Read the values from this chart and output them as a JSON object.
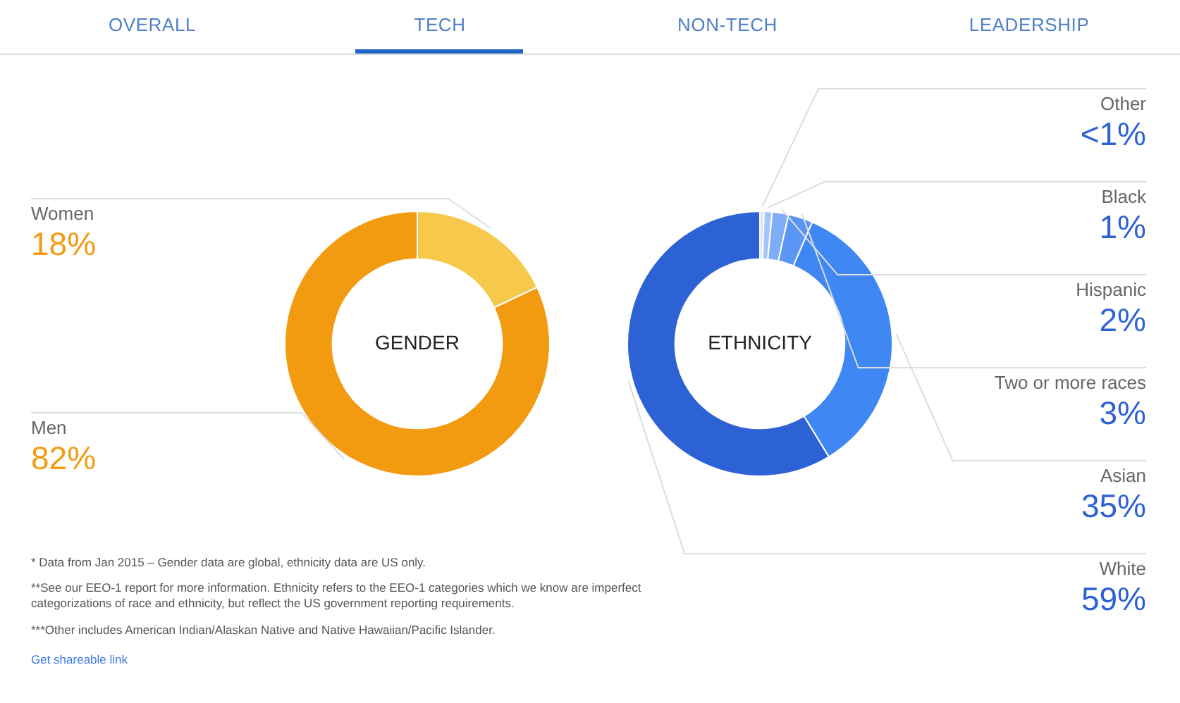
{
  "chart_data": [
    {
      "type": "other",
      "annotations": [
        "OVERALL",
        "TECH",
        "NON-TECH",
        "LEADERSHIP"
      ]
    },
    {
      "type": "donut",
      "title": "GENDER",
      "categories": [
        "Women",
        "Men"
      ],
      "values": [
        18,
        82
      ],
      "value_labels": [
        "18%",
        "82%"
      ],
      "colors": [
        "#f6c94c",
        "#f29a10"
      ]
    },
    {
      "type": "donut",
      "title": "ETHNICITY",
      "categories": [
        "Other",
        "Black",
        "Hispanic",
        "Two or more races",
        "Asian",
        "White"
      ],
      "values": [
        0.5,
        1,
        2,
        3,
        35,
        59
      ],
      "value_labels": [
        "<1%",
        "1%",
        "2%",
        "3%",
        "35%",
        "59%"
      ],
      "colors": [
        "#d5e3fb",
        "#a8c5f8",
        "#7eacf6",
        "#5a96f4",
        "#3f87f2",
        "#2d62d5"
      ]
    },
    {
      "type": "other",
      "annotations": [
        "* Data from Jan 2015 – Gender data are global, ethnicity data are US only.",
        "**See our EEO-1 report for more information. Ethnicity refers to the EEO-1 categories which we know are imperfect categorizations of race and ethnicity, but reflect the US government reporting requirements.",
        "***Other includes American Indian/Alaskan Native and Native Hawaiian/Pacific Islander.",
        "Get shareable link"
      ]
    }
  ]
}
